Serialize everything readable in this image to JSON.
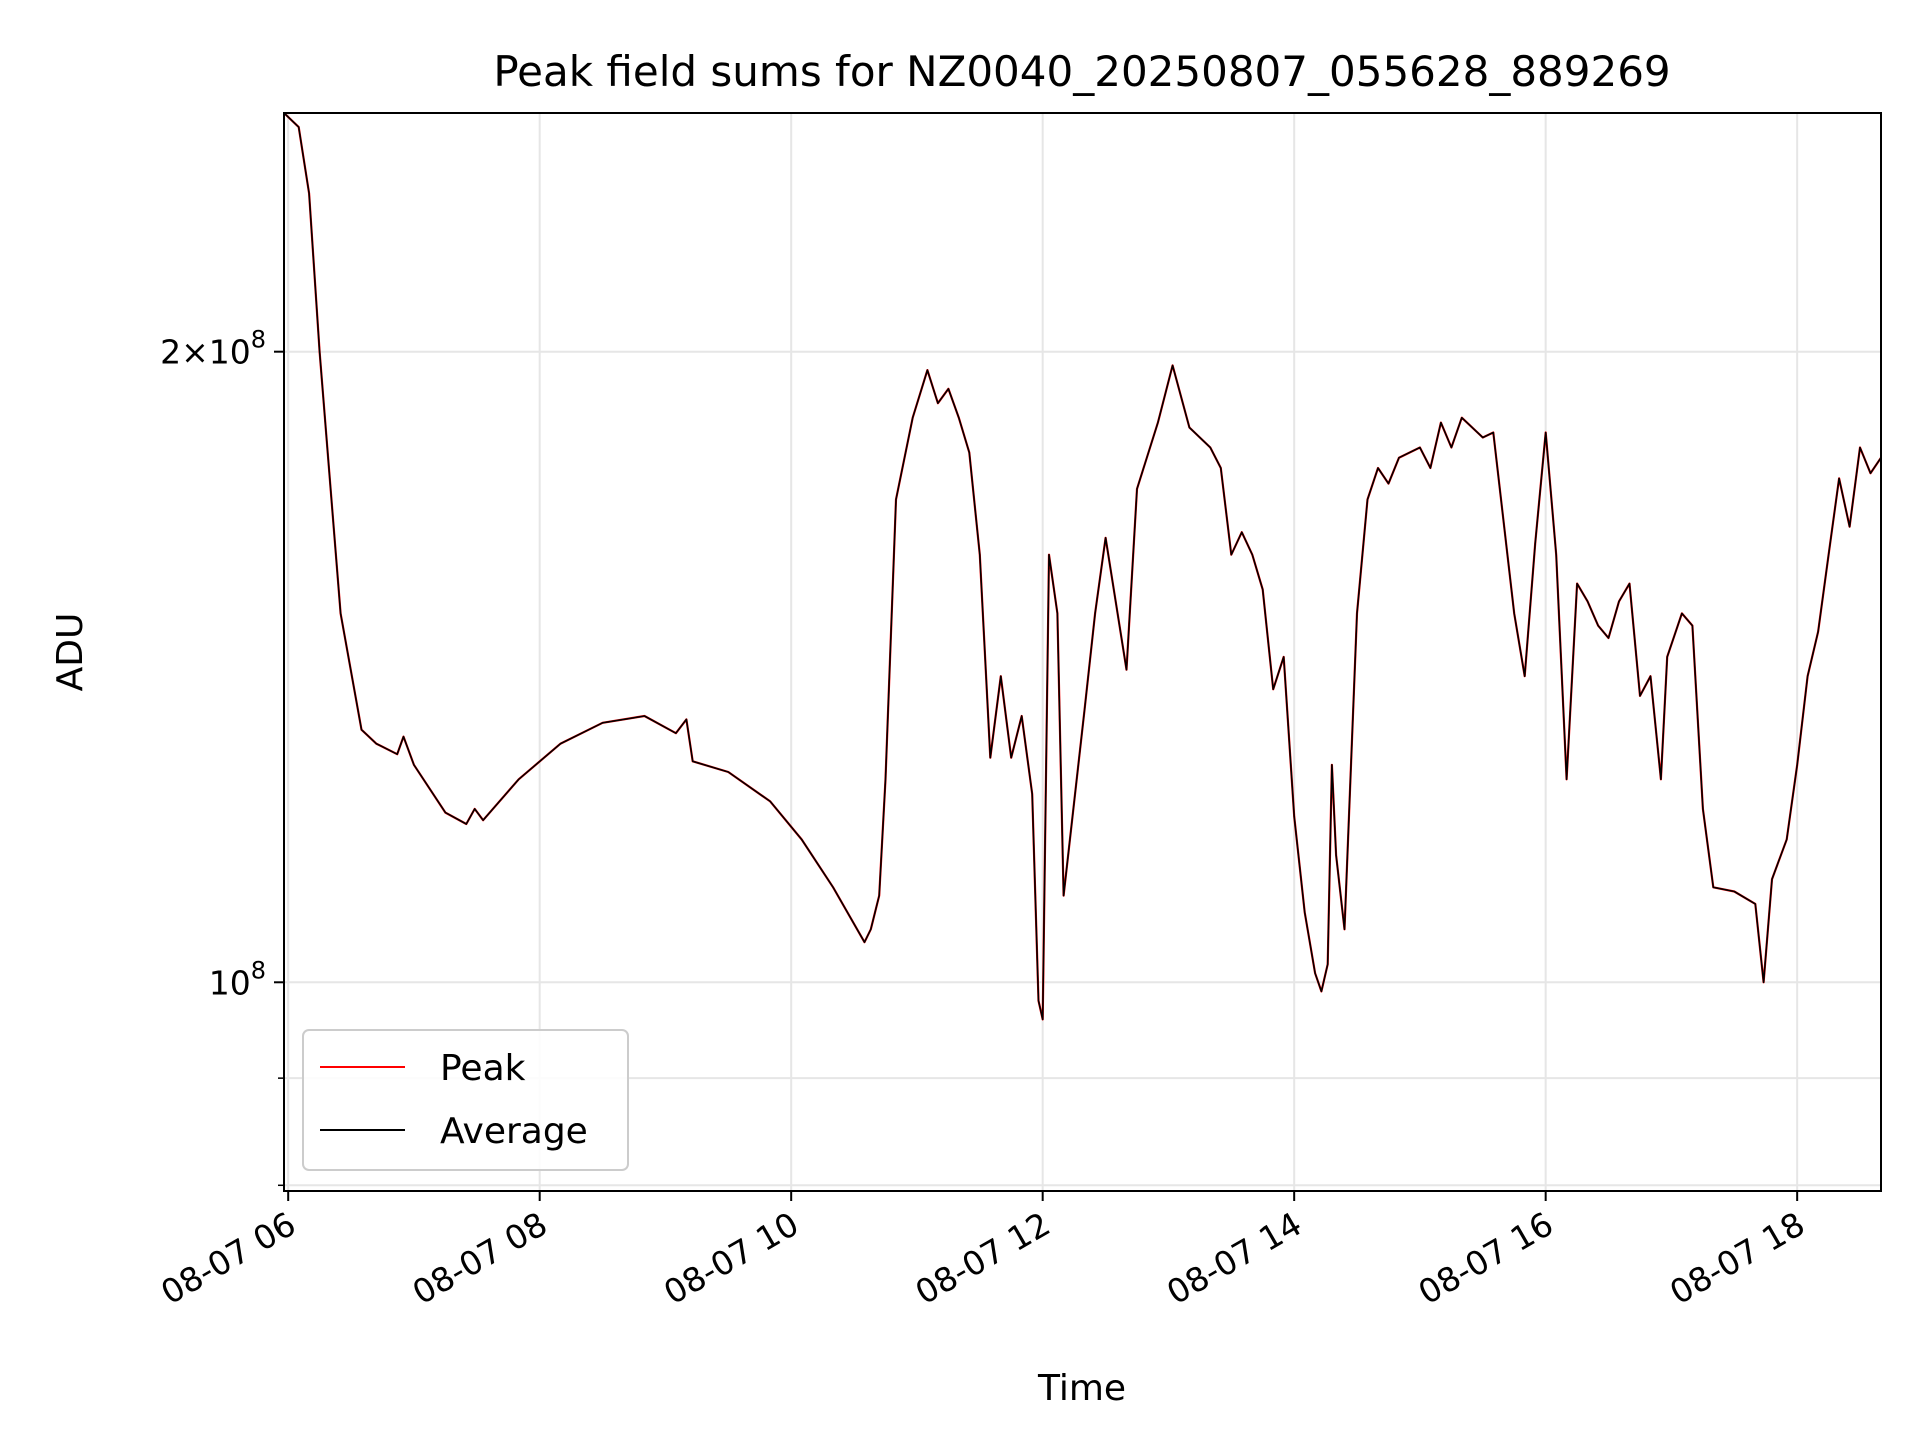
{
  "chart_data": {
    "type": "line",
    "title": "Peak field sums for NZ0040_20250807_055628_889269",
    "xlabel": "Time",
    "ylabel": "ADU",
    "x_scale": "time",
    "y_scale": "log",
    "xlim": [
      "2025-08-07 05:58",
      "2025-08-07 18:40"
    ],
    "ylim": [
      79500000,
      260000000
    ],
    "grid": true,
    "legend_position": "lower-left",
    "x_ticks": [
      "08-07 06",
      "08-07 08",
      "08-07 10",
      "08-07 12",
      "08-07 14",
      "08-07 16",
      "08-07 18"
    ],
    "x_tick_times": [
      "2025-08-07 06:00",
      "2025-08-07 08:00",
      "2025-08-07 10:00",
      "2025-08-07 12:00",
      "2025-08-07 14:00",
      "2025-08-07 16:00",
      "2025-08-07 18:00"
    ],
    "y_ticks": [
      {
        "value": 100000000,
        "mantissa": "",
        "exponent": "8"
      },
      {
        "value": 200000000,
        "mantissa": "2",
        "exponent": "8"
      }
    ],
    "series": [
      {
        "name": "Peak",
        "color": "#ff0000",
        "points": [
          [
            "2025-08-07 05:58",
            260000000
          ],
          [
            "2025-08-07 06:05",
            256000000
          ],
          [
            "2025-08-07 06:10",
            238000000
          ],
          [
            "2025-08-07 06:15",
            200000000
          ],
          [
            "2025-08-07 06:25",
            150000000
          ],
          [
            "2025-08-07 06:35",
            132000000
          ],
          [
            "2025-08-07 06:42",
            130000000
          ],
          [
            "2025-08-07 06:52",
            128500000
          ],
          [
            "2025-08-07 06:55",
            131000000
          ],
          [
            "2025-08-07 07:00",
            127000000
          ],
          [
            "2025-08-07 07:15",
            120500000
          ],
          [
            "2025-08-07 07:25",
            119000000
          ],
          [
            "2025-08-07 07:29",
            121000000
          ],
          [
            "2025-08-07 07:33",
            119500000
          ],
          [
            "2025-08-07 07:50",
            125000000
          ],
          [
            "2025-08-07 08:10",
            130000000
          ],
          [
            "2025-08-07 08:30",
            133000000
          ],
          [
            "2025-08-07 08:50",
            134000000
          ],
          [
            "2025-08-07 09:05",
            131500000
          ],
          [
            "2025-08-07 09:10",
            133500000
          ],
          [
            "2025-08-07 09:13",
            127500000
          ],
          [
            "2025-08-07 09:30",
            126000000
          ],
          [
            "2025-08-07 09:50",
            122000000
          ],
          [
            "2025-08-07 10:05",
            117000000
          ],
          [
            "2025-08-07 10:20",
            111000000
          ],
          [
            "2025-08-07 10:35",
            104500000
          ],
          [
            "2025-08-07 10:38",
            106000000
          ],
          [
            "2025-08-07 10:42",
            110000000
          ],
          [
            "2025-08-07 10:45",
            125000000
          ],
          [
            "2025-08-07 10:50",
            170000000
          ],
          [
            "2025-08-07 10:58",
            186000000
          ],
          [
            "2025-08-07 11:05",
            196000000
          ],
          [
            "2025-08-07 11:10",
            189000000
          ],
          [
            "2025-08-07 11:15",
            192000000
          ],
          [
            "2025-08-07 11:20",
            186000000
          ],
          [
            "2025-08-07 11:25",
            179000000
          ],
          [
            "2025-08-07 11:30",
            160000000
          ],
          [
            "2025-08-07 11:35",
            128000000
          ],
          [
            "2025-08-07 11:40",
            140000000
          ],
          [
            "2025-08-07 11:45",
            128000000
          ],
          [
            "2025-08-07 11:50",
            134000000
          ],
          [
            "2025-08-07 11:55",
            123000000
          ],
          [
            "2025-08-07 11:58",
            98000000
          ],
          [
            "2025-08-07 12:00",
            96000000
          ],
          [
            "2025-08-07 12:03",
            160000000
          ],
          [
            "2025-08-07 12:07",
            150000000
          ],
          [
            "2025-08-07 12:10",
            110000000
          ],
          [
            "2025-08-07 12:20",
            135000000
          ],
          [
            "2025-08-07 12:25",
            150000000
          ],
          [
            "2025-08-07 12:30",
            163000000
          ],
          [
            "2025-08-07 12:40",
            141000000
          ],
          [
            "2025-08-07 12:45",
            172000000
          ],
          [
            "2025-08-07 12:55",
            185000000
          ],
          [
            "2025-08-07 13:02",
            197000000
          ],
          [
            "2025-08-07 13:10",
            184000000
          ],
          [
            "2025-08-07 13:20",
            180000000
          ],
          [
            "2025-08-07 13:25",
            176000000
          ],
          [
            "2025-08-07 13:30",
            160000000
          ],
          [
            "2025-08-07 13:35",
            164000000
          ],
          [
            "2025-08-07 13:40",
            160000000
          ],
          [
            "2025-08-07 13:45",
            154000000
          ],
          [
            "2025-08-07 13:50",
            138000000
          ],
          [
            "2025-08-07 13:55",
            143000000
          ],
          [
            "2025-08-07 14:00",
            120000000
          ],
          [
            "2025-08-07 14:05",
            108000000
          ],
          [
            "2025-08-07 14:10",
            101000000
          ],
          [
            "2025-08-07 14:13",
            99000000
          ],
          [
            "2025-08-07 14:16",
            102000000
          ],
          [
            "2025-08-07 14:18",
            127000000
          ],
          [
            "2025-08-07 14:20",
            115000000
          ],
          [
            "2025-08-07 14:24",
            106000000
          ],
          [
            "2025-08-07 14:30",
            150000000
          ],
          [
            "2025-08-07 14:35",
            170000000
          ],
          [
            "2025-08-07 14:40",
            176000000
          ],
          [
            "2025-08-07 14:45",
            173000000
          ],
          [
            "2025-08-07 14:50",
            178000000
          ],
          [
            "2025-08-07 15:00",
            180000000
          ],
          [
            "2025-08-07 15:05",
            176000000
          ],
          [
            "2025-08-07 15:10",
            185000000
          ],
          [
            "2025-08-07 15:15",
            180000000
          ],
          [
            "2025-08-07 15:20",
            186000000
          ],
          [
            "2025-08-07 15:30",
            182000000
          ],
          [
            "2025-08-07 15:35",
            183000000
          ],
          [
            "2025-08-07 15:45",
            150000000
          ],
          [
            "2025-08-07 15:50",
            140000000
          ],
          [
            "2025-08-07 15:55",
            162000000
          ],
          [
            "2025-08-07 16:00",
            183000000
          ],
          [
            "2025-08-07 16:05",
            160000000
          ],
          [
            "2025-08-07 16:10",
            125000000
          ],
          [
            "2025-08-07 16:15",
            155000000
          ],
          [
            "2025-08-07 16:20",
            152000000
          ],
          [
            "2025-08-07 16:25",
            148000000
          ],
          [
            "2025-08-07 16:30",
            146000000
          ],
          [
            "2025-08-07 16:35",
            152000000
          ],
          [
            "2025-08-07 16:40",
            155000000
          ],
          [
            "2025-08-07 16:45",
            137000000
          ],
          [
            "2025-08-07 16:50",
            140000000
          ],
          [
            "2025-08-07 16:55",
            125000000
          ],
          [
            "2025-08-07 16:58",
            143000000
          ],
          [
            "2025-08-07 17:05",
            150000000
          ],
          [
            "2025-08-07 17:10",
            148000000
          ],
          [
            "2025-08-07 17:15",
            121000000
          ],
          [
            "2025-08-07 17:20",
            111000000
          ],
          [
            "2025-08-07 17:30",
            110500000
          ],
          [
            "2025-08-07 17:40",
            109000000
          ],
          [
            "2025-08-07 17:44",
            100000000
          ],
          [
            "2025-08-07 17:48",
            112000000
          ],
          [
            "2025-08-07 17:55",
            117000000
          ],
          [
            "2025-08-07 18:00",
            127000000
          ],
          [
            "2025-08-07 18:05",
            140000000
          ],
          [
            "2025-08-07 18:10",
            147000000
          ],
          [
            "2025-08-07 18:15",
            160000000
          ],
          [
            "2025-08-07 18:20",
            174000000
          ],
          [
            "2025-08-07 18:25",
            165000000
          ],
          [
            "2025-08-07 18:30",
            180000000
          ],
          [
            "2025-08-07 18:35",
            175000000
          ],
          [
            "2025-08-07 18:40",
            178000000
          ]
        ]
      },
      {
        "name": "Average",
        "color": "#000000",
        "points": [
          [
            "2025-08-07 05:58",
            260000000
          ],
          [
            "2025-08-07 06:05",
            256000000
          ],
          [
            "2025-08-07 06:10",
            238000000
          ],
          [
            "2025-08-07 06:15",
            200000000
          ],
          [
            "2025-08-07 06:25",
            150000000
          ],
          [
            "2025-08-07 06:35",
            132000000
          ],
          [
            "2025-08-07 06:42",
            130000000
          ],
          [
            "2025-08-07 06:52",
            128500000
          ],
          [
            "2025-08-07 06:55",
            131000000
          ],
          [
            "2025-08-07 07:00",
            127000000
          ],
          [
            "2025-08-07 07:15",
            120500000
          ],
          [
            "2025-08-07 07:25",
            119000000
          ],
          [
            "2025-08-07 07:29",
            121000000
          ],
          [
            "2025-08-07 07:33",
            119500000
          ],
          [
            "2025-08-07 07:50",
            125000000
          ],
          [
            "2025-08-07 08:10",
            130000000
          ],
          [
            "2025-08-07 08:30",
            133000000
          ],
          [
            "2025-08-07 08:50",
            134000000
          ],
          [
            "2025-08-07 09:05",
            131500000
          ],
          [
            "2025-08-07 09:10",
            133500000
          ],
          [
            "2025-08-07 09:13",
            127500000
          ],
          [
            "2025-08-07 09:30",
            126000000
          ],
          [
            "2025-08-07 09:50",
            122000000
          ],
          [
            "2025-08-07 10:05",
            117000000
          ],
          [
            "2025-08-07 10:20",
            111000000
          ],
          [
            "2025-08-07 10:35",
            104500000
          ],
          [
            "2025-08-07 10:38",
            106000000
          ],
          [
            "2025-08-07 10:42",
            110000000
          ],
          [
            "2025-08-07 10:45",
            125000000
          ],
          [
            "2025-08-07 10:50",
            170000000
          ],
          [
            "2025-08-07 10:58",
            186000000
          ],
          [
            "2025-08-07 11:05",
            196000000
          ],
          [
            "2025-08-07 11:10",
            189000000
          ],
          [
            "2025-08-07 11:15",
            192000000
          ],
          [
            "2025-08-07 11:20",
            186000000
          ],
          [
            "2025-08-07 11:25",
            179000000
          ],
          [
            "2025-08-07 11:30",
            160000000
          ],
          [
            "2025-08-07 11:35",
            128000000
          ],
          [
            "2025-08-07 11:40",
            140000000
          ],
          [
            "2025-08-07 11:45",
            128000000
          ],
          [
            "2025-08-07 11:50",
            134000000
          ],
          [
            "2025-08-07 11:55",
            123000000
          ],
          [
            "2025-08-07 11:58",
            98000000
          ],
          [
            "2025-08-07 12:00",
            96000000
          ],
          [
            "2025-08-07 12:03",
            160000000
          ],
          [
            "2025-08-07 12:07",
            150000000
          ],
          [
            "2025-08-07 12:10",
            110000000
          ],
          [
            "2025-08-07 12:20",
            135000000
          ],
          [
            "2025-08-07 12:25",
            150000000
          ],
          [
            "2025-08-07 12:30",
            163000000
          ],
          [
            "2025-08-07 12:40",
            141000000
          ],
          [
            "2025-08-07 12:45",
            172000000
          ],
          [
            "2025-08-07 12:55",
            185000000
          ],
          [
            "2025-08-07 13:02",
            197000000
          ],
          [
            "2025-08-07 13:10",
            184000000
          ],
          [
            "2025-08-07 13:20",
            180000000
          ],
          [
            "2025-08-07 13:25",
            176000000
          ],
          [
            "2025-08-07 13:30",
            160000000
          ],
          [
            "2025-08-07 13:35",
            164000000
          ],
          [
            "2025-08-07 13:40",
            160000000
          ],
          [
            "2025-08-07 13:45",
            154000000
          ],
          [
            "2025-08-07 13:50",
            138000000
          ],
          [
            "2025-08-07 13:55",
            143000000
          ],
          [
            "2025-08-07 14:00",
            120000000
          ],
          [
            "2025-08-07 14:05",
            108000000
          ],
          [
            "2025-08-07 14:10",
            101000000
          ],
          [
            "2025-08-07 14:13",
            99000000
          ],
          [
            "2025-08-07 14:16",
            102000000
          ],
          [
            "2025-08-07 14:18",
            127000000
          ],
          [
            "2025-08-07 14:20",
            115000000
          ],
          [
            "2025-08-07 14:24",
            106000000
          ],
          [
            "2025-08-07 14:30",
            150000000
          ],
          [
            "2025-08-07 14:35",
            170000000
          ],
          [
            "2025-08-07 14:40",
            176000000
          ],
          [
            "2025-08-07 14:45",
            173000000
          ],
          [
            "2025-08-07 14:50",
            178000000
          ],
          [
            "2025-08-07 15:00",
            180000000
          ],
          [
            "2025-08-07 15:05",
            176000000
          ],
          [
            "2025-08-07 15:10",
            185000000
          ],
          [
            "2025-08-07 15:15",
            180000000
          ],
          [
            "2025-08-07 15:20",
            186000000
          ],
          [
            "2025-08-07 15:30",
            182000000
          ],
          [
            "2025-08-07 15:35",
            183000000
          ],
          [
            "2025-08-07 15:45",
            150000000
          ],
          [
            "2025-08-07 15:50",
            140000000
          ],
          [
            "2025-08-07 15:55",
            162000000
          ],
          [
            "2025-08-07 16:00",
            183000000
          ],
          [
            "2025-08-07 16:05",
            160000000
          ],
          [
            "2025-08-07 16:10",
            125000000
          ],
          [
            "2025-08-07 16:15",
            155000000
          ],
          [
            "2025-08-07 16:20",
            152000000
          ],
          [
            "2025-08-07 16:25",
            148000000
          ],
          [
            "2025-08-07 16:30",
            146000000
          ],
          [
            "2025-08-07 16:35",
            152000000
          ],
          [
            "2025-08-07 16:40",
            155000000
          ],
          [
            "2025-08-07 16:45",
            137000000
          ],
          [
            "2025-08-07 16:50",
            140000000
          ],
          [
            "2025-08-07 16:55",
            125000000
          ],
          [
            "2025-08-07 16:58",
            143000000
          ],
          [
            "2025-08-07 17:05",
            150000000
          ],
          [
            "2025-08-07 17:10",
            148000000
          ],
          [
            "2025-08-07 17:15",
            121000000
          ],
          [
            "2025-08-07 17:20",
            111000000
          ],
          [
            "2025-08-07 17:30",
            110500000
          ],
          [
            "2025-08-07 17:40",
            109000000
          ],
          [
            "2025-08-07 17:44",
            100000000
          ],
          [
            "2025-08-07 17:48",
            112000000
          ],
          [
            "2025-08-07 17:55",
            117000000
          ],
          [
            "2025-08-07 18:00",
            127000000
          ],
          [
            "2025-08-07 18:05",
            140000000
          ],
          [
            "2025-08-07 18:10",
            147000000
          ],
          [
            "2025-08-07 18:15",
            160000000
          ],
          [
            "2025-08-07 18:20",
            174000000
          ],
          [
            "2025-08-07 18:25",
            165000000
          ],
          [
            "2025-08-07 18:30",
            180000000
          ],
          [
            "2025-08-07 18:35",
            175000000
          ],
          [
            "2025-08-07 18:40",
            178000000
          ]
        ]
      }
    ]
  }
}
